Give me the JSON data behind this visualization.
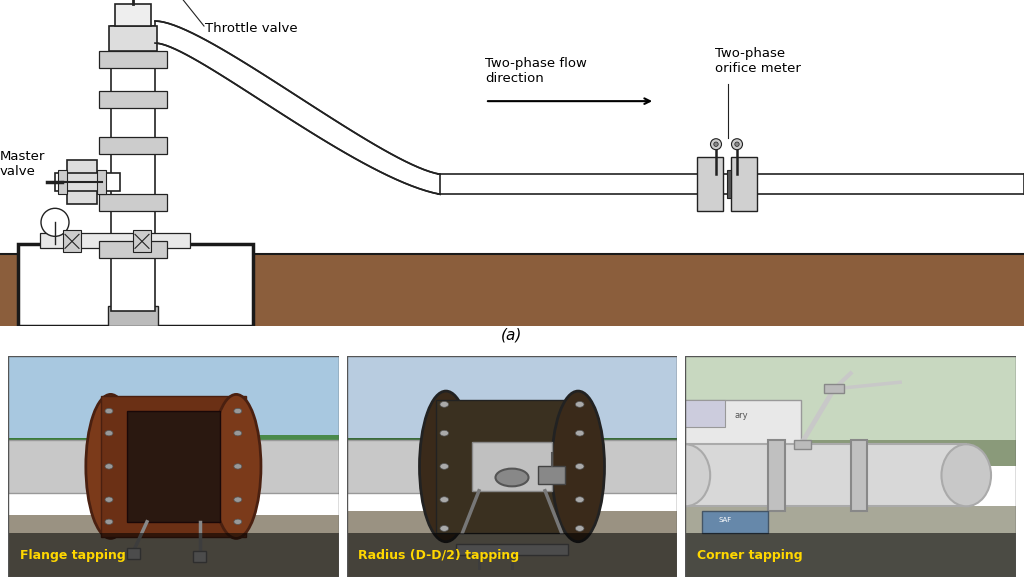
{
  "title_a": "(a)",
  "label_throttle": "Throttle valve",
  "label_master": "Master\nvalve",
  "label_flow": "Two-phase flow\ndirection",
  "label_orifice": "Two-phase\norifice meter",
  "caption_flange": "Flange tapping",
  "caption_radius": "Radius (D-D/2) tapping",
  "caption_corner": "Corner tapping",
  "bg_color": "#ffffff",
  "diagram_bg": "#ffffff",
  "ground_color": "#8B5E3C",
  "ground_dark": "#1a1a1a",
  "pipe_fill": "#ffffff",
  "pipe_outline": "#222222",
  "flange_fill": "#cccccc",
  "caption_color": "#FFD700"
}
